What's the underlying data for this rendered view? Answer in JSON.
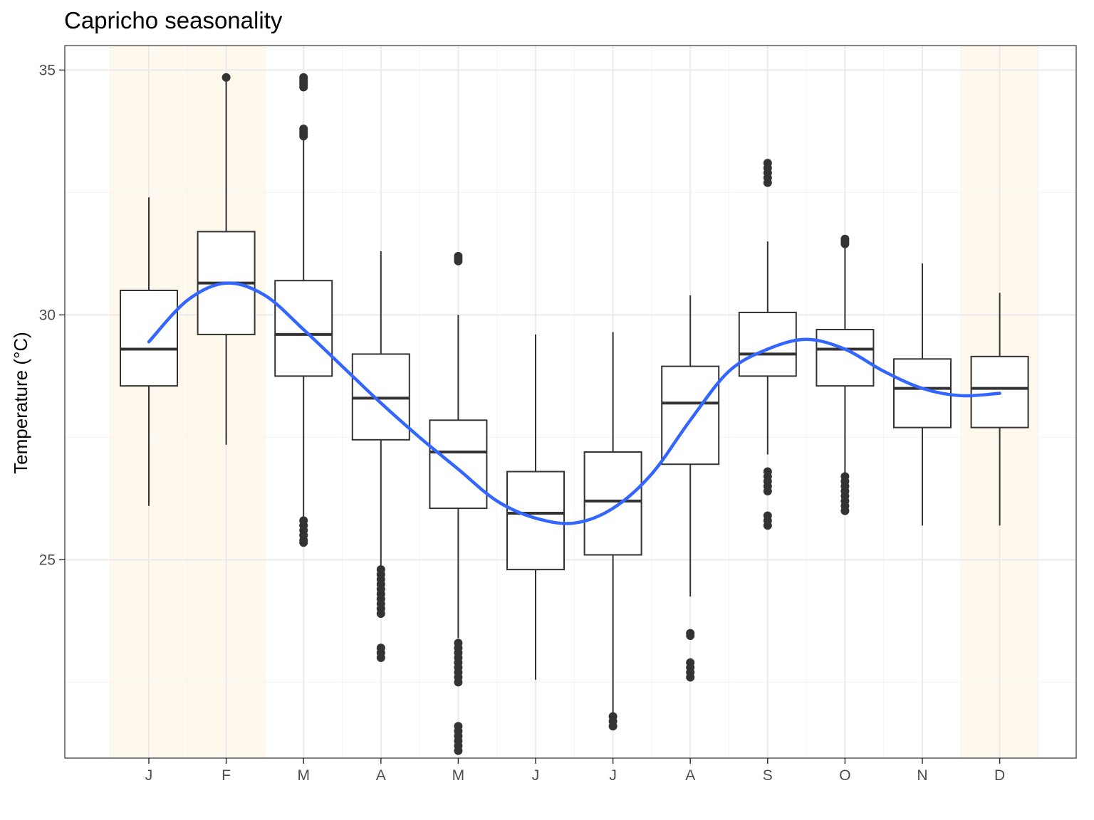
{
  "chart_data": {
    "type": "boxplot",
    "title": "Capricho seasonality",
    "xlabel": "",
    "ylabel": "Temperature (°C)",
    "categories": [
      "J",
      "F",
      "M",
      "A",
      "M",
      "J",
      "J",
      "A",
      "S",
      "O",
      "N",
      "D"
    ],
    "ylim": [
      20.95,
      35.5
    ],
    "yticks": [
      25,
      30,
      35
    ],
    "grid": true,
    "highlight_months": [
      0,
      1,
      11
    ],
    "colors": {
      "highlight": "#fff8ec",
      "smooth": "#3366ff",
      "box": "#333333",
      "grid_major": "#ebebeb",
      "grid_minor": "#f5f5f5",
      "panel_border": "#333333"
    },
    "boxes": [
      {
        "low": 26.1,
        "q1": 28.55,
        "median": 29.3,
        "q3": 30.5,
        "high": 32.4,
        "outliers": []
      },
      {
        "low": 27.35,
        "q1": 29.6,
        "median": 30.65,
        "q3": 31.7,
        "high": 34.85,
        "outliers": [
          34.85
        ]
      },
      {
        "low": 25.7,
        "q1": 28.75,
        "median": 29.6,
        "q3": 30.7,
        "high": 33.6,
        "outliers": [
          34.85,
          34.8,
          34.75,
          34.7,
          34.65,
          33.8,
          33.75,
          33.7,
          33.65,
          25.8,
          25.7,
          25.6,
          25.5,
          25.4,
          25.35
        ]
      },
      {
        "low": 24.85,
        "q1": 27.45,
        "median": 28.3,
        "q3": 29.2,
        "high": 31.3,
        "outliers": [
          24.8,
          24.7,
          24.6,
          24.5,
          24.4,
          24.3,
          24.2,
          24.1,
          24.0,
          23.9,
          23.2,
          23.1,
          23.0
        ]
      },
      {
        "low": 23.4,
        "q1": 26.05,
        "median": 27.2,
        "q3": 27.85,
        "high": 30.0,
        "outliers": [
          31.2,
          31.15,
          31.1,
          23.3,
          23.2,
          23.1,
          23.0,
          22.9,
          22.8,
          22.7,
          22.6,
          22.5,
          21.6,
          21.5,
          21.4,
          21.3,
          21.2,
          21.1
        ]
      },
      {
        "low": 22.55,
        "q1": 24.8,
        "median": 25.95,
        "q3": 26.8,
        "high": 29.6,
        "outliers": []
      },
      {
        "low": 21.75,
        "q1": 25.1,
        "median": 26.2,
        "q3": 27.2,
        "high": 29.65,
        "outliers": [
          21.8,
          21.7,
          21.6
        ]
      },
      {
        "low": 24.25,
        "q1": 26.95,
        "median": 28.2,
        "q3": 28.95,
        "high": 30.4,
        "outliers": [
          23.5,
          23.45,
          22.9,
          22.8,
          22.7,
          22.6
        ]
      },
      {
        "low": 27.15,
        "q1": 28.75,
        "median": 29.2,
        "q3": 30.05,
        "high": 31.5,
        "outliers": [
          33.1,
          33.0,
          32.9,
          32.8,
          32.7,
          26.8,
          26.7,
          26.6,
          26.5,
          26.4,
          25.9,
          25.8,
          25.7
        ]
      },
      {
        "low": 26.75,
        "q1": 28.55,
        "median": 29.3,
        "q3": 29.7,
        "high": 31.45,
        "outliers": [
          31.55,
          31.5,
          31.45,
          26.7,
          26.6,
          26.5,
          26.4,
          26.3,
          26.2,
          26.1,
          26.0
        ]
      },
      {
        "low": 25.7,
        "q1": 27.7,
        "median": 28.5,
        "q3": 29.1,
        "high": 31.05,
        "outliers": []
      },
      {
        "low": 25.7,
        "q1": 27.7,
        "median": 28.5,
        "q3": 29.15,
        "high": 30.45,
        "outliers": []
      }
    ],
    "smooth": {
      "name": "",
      "x": [
        1,
        1.5,
        2,
        2.5,
        3,
        3.5,
        4,
        4.5,
        5,
        5.5,
        6,
        6.5,
        7,
        7.5,
        8,
        8.5,
        9,
        9.5,
        10,
        10.5,
        11,
        11.5,
        12
      ],
      "y": [
        29.45,
        30.3,
        30.65,
        30.4,
        29.7,
        28.95,
        28.2,
        27.5,
        26.85,
        26.2,
        25.85,
        25.75,
        26.05,
        26.75,
        27.85,
        28.85,
        29.3,
        29.5,
        29.3,
        28.85,
        28.5,
        28.35,
        28.4
      ]
    }
  }
}
